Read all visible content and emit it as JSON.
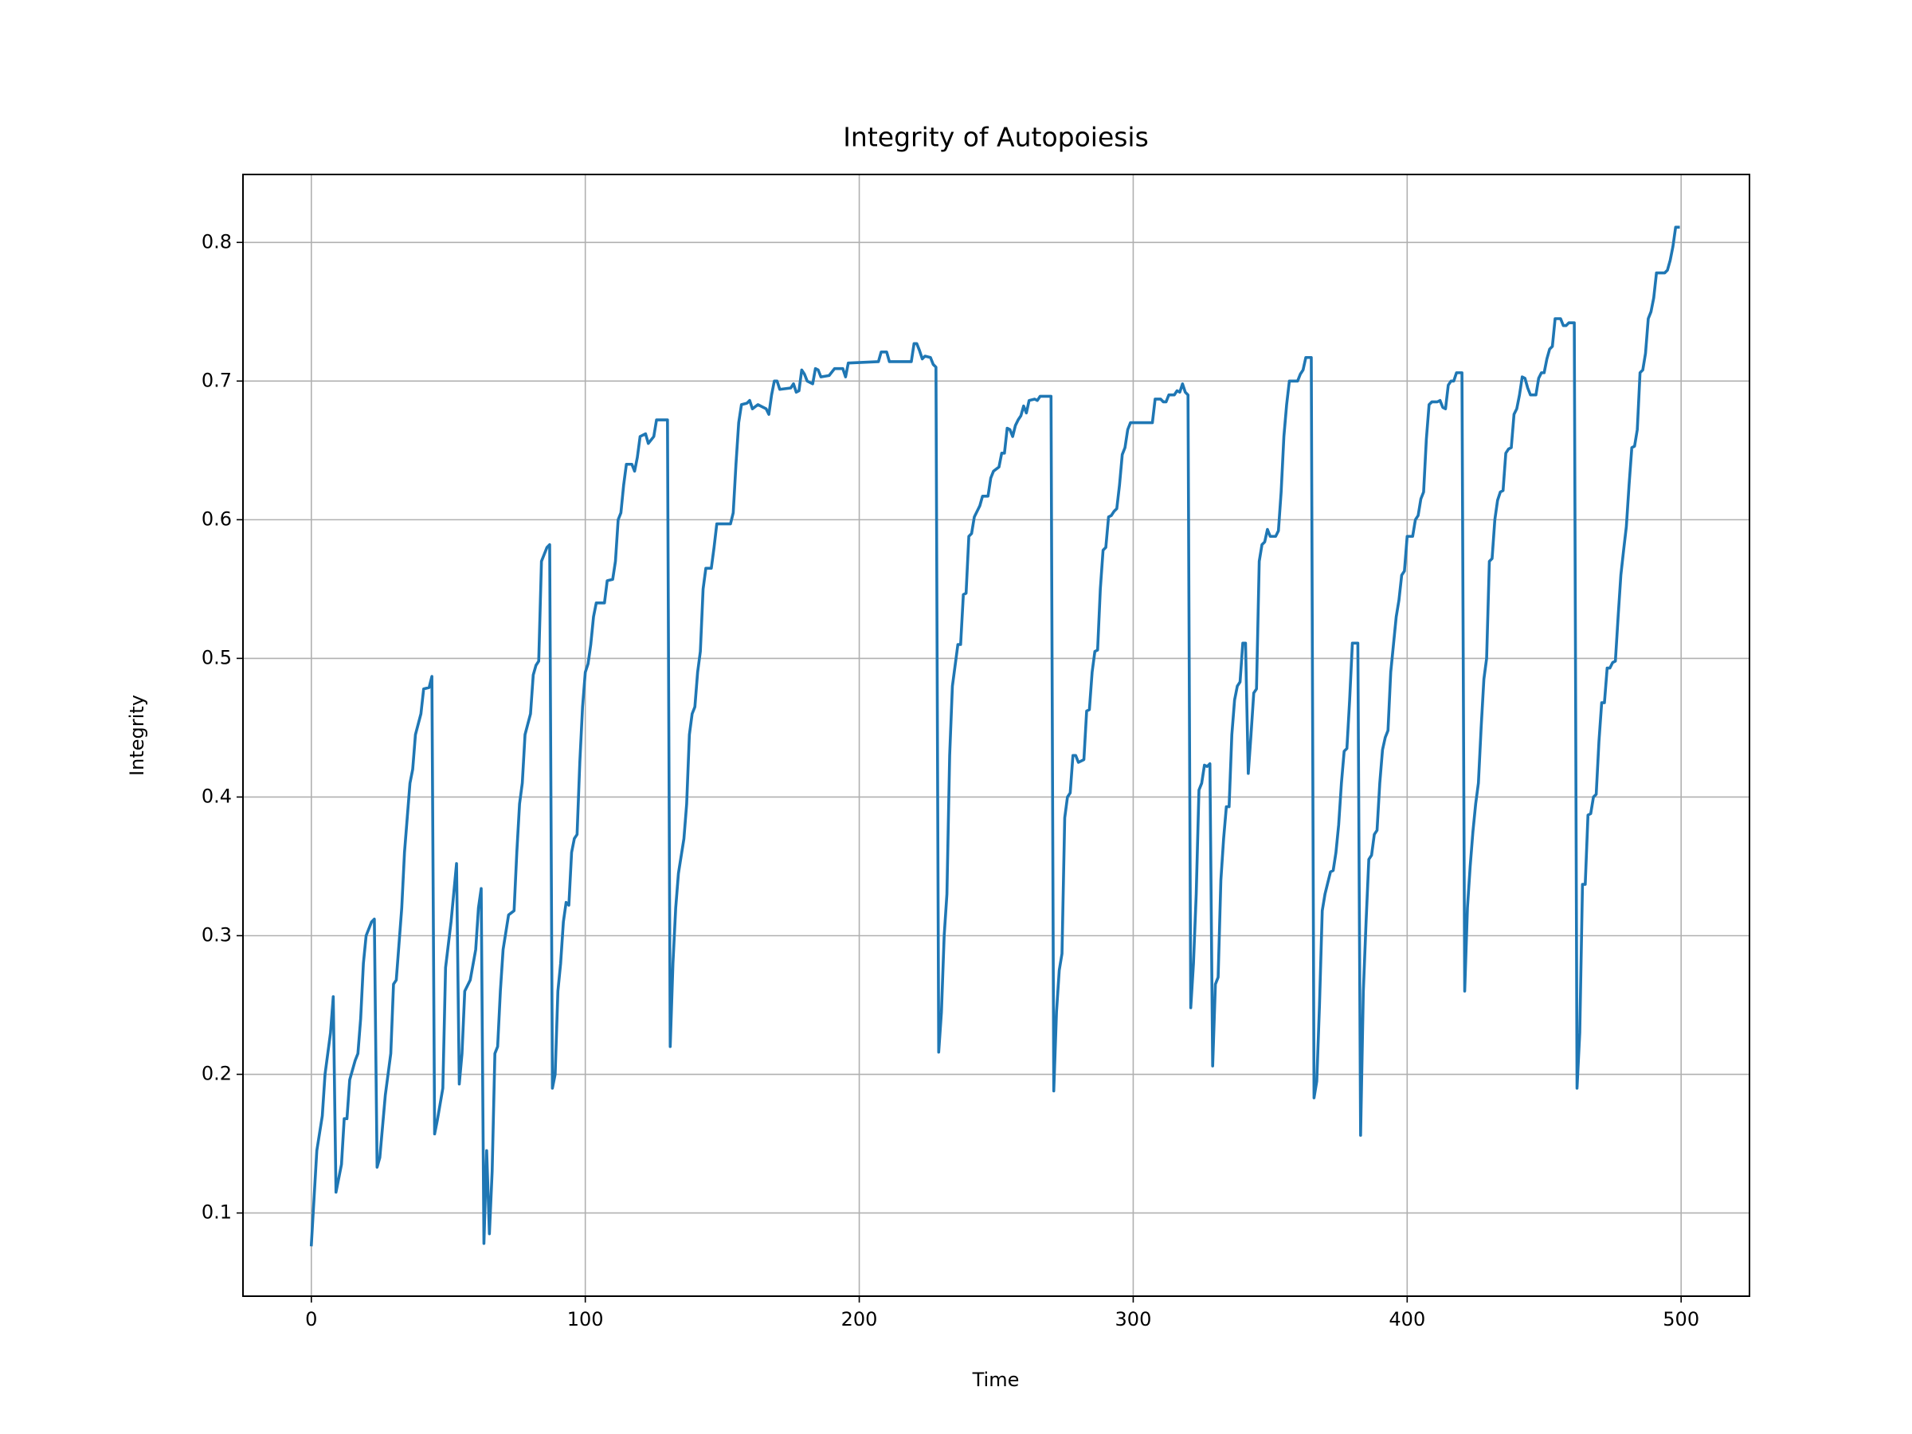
{
  "chart_data": {
    "type": "line",
    "title": "Integrity of Autopoiesis",
    "xlabel": "Time",
    "ylabel": "Integrity",
    "color": "#1f77b4",
    "grid": true,
    "xlim": [
      -24.95,
      524.95
    ],
    "ylim": [
      0.04,
      0.849
    ],
    "xticks": [
      0,
      100,
      200,
      300,
      400,
      500
    ],
    "yticks": [
      0.1,
      0.2,
      0.3,
      0.4,
      0.5,
      0.6,
      0.7,
      0.8
    ],
    "x": [
      0,
      2,
      4,
      5,
      7,
      8,
      9,
      11,
      12,
      13,
      14,
      16,
      17,
      18,
      19,
      20,
      22,
      23,
      24,
      25,
      27,
      29,
      30,
      31,
      33,
      34,
      35,
      36,
      37,
      38,
      40,
      41,
      43,
      44,
      45,
      46,
      48,
      49,
      51,
      53,
      54,
      55,
      56,
      58,
      60,
      61,
      62,
      63,
      64,
      65,
      66,
      67,
      68,
      69,
      70,
      72,
      74,
      75,
      76,
      77,
      78,
      80,
      81,
      82,
      83,
      84,
      85,
      86,
      87,
      88,
      89,
      90,
      91,
      92,
      93,
      94,
      95,
      96,
      97,
      98,
      99,
      100,
      101,
      102,
      103,
      104,
      107,
      108,
      110,
      111,
      112,
      113,
      114,
      115,
      117,
      118,
      119,
      120,
      122,
      123,
      125,
      126,
      127,
      130,
      131,
      132,
      133,
      134,
      136,
      137,
      138,
      139,
      140,
      141,
      142,
      143,
      144,
      146,
      147,
      148,
      153,
      154,
      155,
      156,
      157,
      159,
      160,
      161,
      163,
      166,
      167,
      168,
      169,
      170,
      171,
      175,
      176,
      177,
      178,
      179,
      180,
      181,
      183,
      184,
      185,
      186,
      189,
      191,
      194,
      195,
      196,
      207,
      208,
      210,
      211,
      219,
      220,
      221,
      222,
      223,
      224,
      226,
      227,
      228,
      229,
      230,
      231,
      232,
      233,
      234,
      235,
      236,
      237,
      238,
      239,
      240,
      241,
      242,
      244,
      245,
      247,
      248,
      249,
      251,
      252,
      253,
      254,
      255,
      256,
      257,
      258,
      259,
      260,
      261,
      262,
      264,
      265,
      266,
      270,
      271,
      272,
      273,
      274,
      275,
      276,
      277,
      278,
      279,
      280,
      282,
      283,
      284,
      285,
      286,
      287,
      288,
      289,
      290,
      291,
      292,
      293,
      294,
      295,
      296,
      297,
      298,
      299,
      307,
      308,
      310,
      311,
      312,
      313,
      315,
      316,
      317,
      318,
      319,
      320,
      321,
      322,
      323,
      324,
      325,
      326,
      327,
      328,
      329,
      330,
      331,
      332,
      333,
      334,
      335,
      336,
      337,
      338,
      339,
      340,
      341,
      342,
      343,
      344,
      345,
      346,
      347,
      348,
      349,
      350,
      352,
      353,
      354,
      355,
      356,
      357,
      359,
      360,
      361,
      362,
      363,
      365,
      366,
      367,
      368,
      369,
      370,
      371,
      372,
      373,
      374,
      375,
      376,
      377,
      378,
      379,
      380,
      382,
      383,
      384,
      385,
      386,
      387,
      388,
      389,
      390,
      391,
      392,
      393,
      394,
      395,
      396,
      397,
      398,
      399,
      400,
      402,
      403,
      404,
      405,
      406,
      407,
      408,
      409,
      411,
      412,
      413,
      414,
      415,
      416,
      417,
      418,
      420,
      421,
      422,
      423,
      424,
      425,
      426,
      427,
      428,
      429,
      430,
      431,
      432,
      433,
      434,
      435,
      436,
      437,
      438,
      439,
      440,
      441,
      442,
      443,
      444,
      445,
      447,
      448,
      449,
      450,
      451,
      452,
      453,
      454,
      456,
      457,
      458,
      459,
      461,
      462,
      463,
      464,
      465,
      466,
      467,
      468,
      469,
      470,
      471,
      472,
      473,
      474,
      475,
      476,
      477,
      478,
      479,
      480,
      481,
      482,
      483,
      484,
      485,
      486,
      487,
      488,
      489,
      490,
      491,
      494,
      495,
      496,
      497,
      498,
      499
    ],
    "values": [
      0.077,
      0.145,
      0.17,
      0.2,
      0.23,
      0.256,
      0.115,
      0.135,
      0.168,
      0.168,
      0.196,
      0.21,
      0.215,
      0.24,
      0.28,
      0.3,
      0.31,
      0.312,
      0.133,
      0.14,
      0.185,
      0.215,
      0.265,
      0.268,
      0.32,
      0.36,
      0.385,
      0.41,
      0.42,
      0.445,
      0.46,
      0.478,
      0.479,
      0.487,
      0.157,
      0.167,
      0.19,
      0.277,
      0.31,
      0.352,
      0.193,
      0.215,
      0.26,
      0.268,
      0.29,
      0.32,
      0.334,
      0.078,
      0.145,
      0.085,
      0.13,
      0.215,
      0.22,
      0.26,
      0.29,
      0.315,
      0.318,
      0.36,
      0.395,
      0.41,
      0.445,
      0.46,
      0.488,
      0.495,
      0.498,
      0.57,
      0.575,
      0.58,
      0.582,
      0.19,
      0.2,
      0.26,
      0.28,
      0.31,
      0.324,
      0.322,
      0.36,
      0.37,
      0.373,
      0.425,
      0.465,
      0.49,
      0.496,
      0.51,
      0.53,
      0.54,
      0.54,
      0.556,
      0.557,
      0.57,
      0.6,
      0.605,
      0.625,
      0.64,
      0.64,
      0.635,
      0.645,
      0.66,
      0.662,
      0.655,
      0.66,
      0.672,
      0.672,
      0.672,
      0.22,
      0.28,
      0.32,
      0.345,
      0.37,
      0.395,
      0.445,
      0.46,
      0.465,
      0.49,
      0.505,
      0.55,
      0.565,
      0.565,
      0.58,
      0.597,
      0.597,
      0.605,
      0.64,
      0.67,
      0.683,
      0.684,
      0.686,
      0.68,
      0.683,
      0.68,
      0.676,
      0.69,
      0.7,
      0.7,
      0.694,
      0.695,
      0.698,
      0.692,
      0.693,
      0.708,
      0.705,
      0.7,
      0.698,
      0.709,
      0.708,
      0.703,
      0.704,
      0.709,
      0.709,
      0.703,
      0.713,
      0.714,
      0.721,
      0.721,
      0.714,
      0.714,
      0.727,
      0.727,
      0.722,
      0.716,
      0.718,
      0.717,
      0.712,
      0.71,
      0.216,
      0.245,
      0.3,
      0.33,
      0.43,
      0.48,
      0.495,
      0.51,
      0.51,
      0.546,
      0.547,
      0.588,
      0.59,
      0.602,
      0.61,
      0.617,
      0.617,
      0.63,
      0.635,
      0.638,
      0.648,
      0.648,
      0.666,
      0.665,
      0.66,
      0.668,
      0.672,
      0.675,
      0.682,
      0.677,
      0.686,
      0.687,
      0.686,
      0.689,
      0.689,
      0.188,
      0.245,
      0.275,
      0.287,
      0.385,
      0.4,
      0.403,
      0.43,
      0.43,
      0.425,
      0.427,
      0.462,
      0.463,
      0.49,
      0.505,
      0.506,
      0.55,
      0.578,
      0.58,
      0.602,
      0.603,
      0.606,
      0.608,
      0.625,
      0.647,
      0.652,
      0.665,
      0.67,
      0.67,
      0.687,
      0.687,
      0.685,
      0.685,
      0.69,
      0.69,
      0.693,
      0.692,
      0.698,
      0.692,
      0.69,
      0.248,
      0.28,
      0.33,
      0.405,
      0.41,
      0.423,
      0.422,
      0.424,
      0.206,
      0.265,
      0.27,
      0.34,
      0.37,
      0.393,
      0.393,
      0.445,
      0.47,
      0.48,
      0.483,
      0.511,
      0.511,
      0.417,
      0.445,
      0.475,
      0.478,
      0.57,
      0.582,
      0.584,
      0.593,
      0.588,
      0.588,
      0.592,
      0.62,
      0.66,
      0.683,
      0.7,
      0.7,
      0.7,
      0.705,
      0.708,
      0.717,
      0.717,
      0.183,
      0.195,
      0.25,
      0.318,
      0.33,
      0.338,
      0.346,
      0.347,
      0.36,
      0.38,
      0.41,
      0.433,
      0.435,
      0.47,
      0.511,
      0.511,
      0.156,
      0.26,
      0.31,
      0.355,
      0.358,
      0.373,
      0.376,
      0.41,
      0.434,
      0.443,
      0.448,
      0.49,
      0.51,
      0.53,
      0.542,
      0.56,
      0.563,
      0.588,
      0.588,
      0.6,
      0.603,
      0.615,
      0.62,
      0.658,
      0.683,
      0.685,
      0.685,
      0.686,
      0.681,
      0.68,
      0.697,
      0.7,
      0.7,
      0.706,
      0.706,
      0.26,
      0.32,
      0.35,
      0.375,
      0.395,
      0.41,
      0.45,
      0.485,
      0.5,
      0.57,
      0.572,
      0.6,
      0.614,
      0.62,
      0.621,
      0.648,
      0.651,
      0.652,
      0.676,
      0.68,
      0.69,
      0.703,
      0.702,
      0.695,
      0.69,
      0.69,
      0.702,
      0.706,
      0.706,
      0.716,
      0.723,
      0.725,
      0.745,
      0.745,
      0.74,
      0.74,
      0.742,
      0.742,
      0.19,
      0.23,
      0.337,
      0.337,
      0.387,
      0.388,
      0.4,
      0.402,
      0.44,
      0.468,
      0.468,
      0.493,
      0.493,
      0.497,
      0.498,
      0.53,
      0.56,
      0.578,
      0.595,
      0.625,
      0.652,
      0.653,
      0.665,
      0.706,
      0.708,
      0.72,
      0.745,
      0.75,
      0.76,
      0.778,
      0.778,
      0.78,
      0.787,
      0.797,
      0.811,
      0.811
    ]
  }
}
